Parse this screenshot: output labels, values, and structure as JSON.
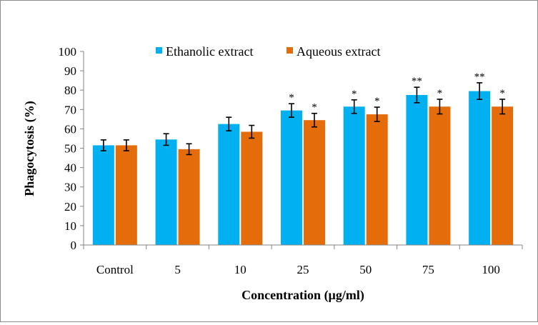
{
  "chart_data": {
    "type": "bar",
    "title": "",
    "xlabel": "Concentration (µg/ml)",
    "ylabel": "Phagocytosis (%)",
    "ylim": [
      0,
      100
    ],
    "yticks": [
      "0",
      "10",
      "20",
      "30",
      "40",
      "50",
      "60",
      "70",
      "80",
      "90",
      "100"
    ],
    "categories": [
      "Control",
      "5",
      "10",
      "25",
      "50",
      "75",
      "100"
    ],
    "legend_position": "top",
    "series": [
      {
        "name": "Ethanolic extract",
        "color": "#00b0f0",
        "values": [
          51.5,
          54.5,
          62.5,
          69.5,
          71.5,
          77.5,
          79.5
        ],
        "errors": [
          2.8,
          3.0,
          3.5,
          3.5,
          3.5,
          4.0,
          4.3
        ],
        "significance": [
          "",
          "",
          "",
          "*",
          "*",
          "**",
          "**"
        ]
      },
      {
        "name": "Aqueous extract",
        "color": "#e46c0a",
        "values": [
          51.5,
          49.5,
          58.5,
          64.5,
          67.5,
          71.5,
          71.5
        ],
        "errors": [
          2.8,
          2.8,
          3.3,
          3.5,
          3.7,
          3.8,
          3.8
        ],
        "significance": [
          "",
          "",
          "",
          "*",
          "*",
          "*",
          "*"
        ]
      }
    ]
  }
}
